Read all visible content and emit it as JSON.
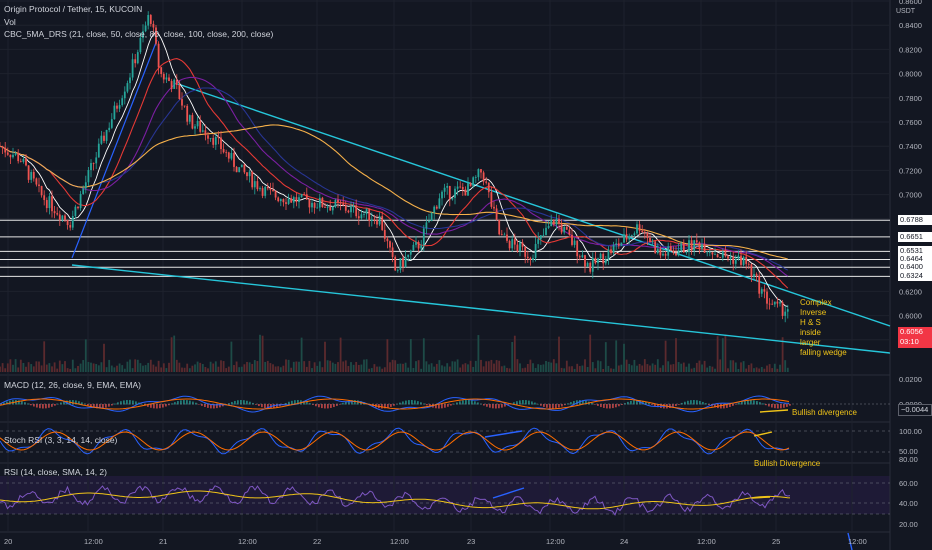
{
  "header": {
    "symbol_line": "Origin Protocol / Tether, 15, KUCOIN",
    "volume_label": "Vol",
    "indicator_label": "CBC_5MA_DRS (21, close, 50, close, 80, close, 100, close, 200, close)"
  },
  "price_axis": {
    "currency": "USDT",
    "ticks": [
      "0.8600",
      "0.8400",
      "0.8200",
      "0.8000",
      "0.7800",
      "0.7600",
      "0.7400",
      "0.7200",
      "0.7000",
      "0.6800",
      "0.6200",
      "0.6000",
      "0.5800"
    ],
    "levels": [
      "0.6788",
      "0.6651",
      "0.6531",
      "0.6464",
      "0.6400",
      "0.6324"
    ],
    "last_price": "0.6056",
    "countdown": "03:10"
  },
  "time_axis": {
    "labels": [
      "20",
      "12:00",
      "21",
      "12:00",
      "22",
      "12:00",
      "23",
      "12:00",
      "24",
      "12:00",
      "25",
      "12:00"
    ]
  },
  "annotations": {
    "wedge_note": [
      "Complex",
      "Inverse",
      "H & S",
      "inside",
      "larger",
      "falling wedge"
    ],
    "macd_note": "Bullish divergence",
    "stoch_note": "Bullish Divergence"
  },
  "macd": {
    "label": "MACD (12, 26, close, 9, EMA, EMA)",
    "ticks": [
      "0.0200",
      "0.0000"
    ],
    "value": "−0.0044"
  },
  "stoch": {
    "label": "Stoch RSI (3, 3, 14, 14, close)",
    "ticks": [
      "100.00",
      "50.00"
    ]
  },
  "rsi": {
    "label": "RSI (14, close, SMA, 14, 2)",
    "ticks": [
      "80.00",
      "60.00",
      "40.00",
      "20.00"
    ]
  },
  "colors": {
    "background": "#131722",
    "up": "#26a69a",
    "down": "#ef5350",
    "wedge": "#26c6da",
    "ma21": "#ffffff",
    "ma50": "#e53935",
    "ma80": "#7b1fa2",
    "ma100": "#283593",
    "ma200": "#f5b04a",
    "note": "#f0c419",
    "rsi": "#7e57c2",
    "rsi_ma": "#f0c419",
    "macd": "#2962ff",
    "signal": "#ff6d00"
  }
}
